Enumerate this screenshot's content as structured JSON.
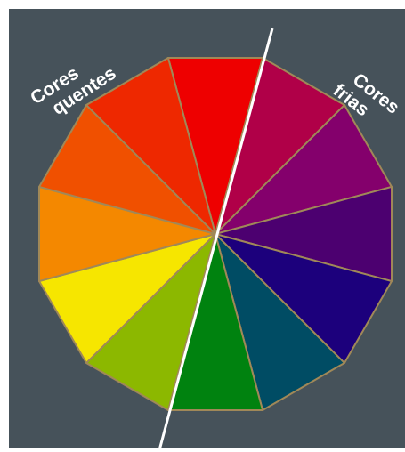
{
  "labels": {
    "warm_line1": "Cores",
    "warm_line2": "quentes",
    "cool_line1": "Cores",
    "cool_line2": "frias"
  },
  "colors": {
    "background": "#46525a",
    "divider_line": "#ffffff",
    "segment_border": "#a08858",
    "label_text": "#ffffff"
  },
  "wheel": {
    "segment_count": 12,
    "segments": [
      {
        "name": "red",
        "color": "#ee0000",
        "temperature": "warm"
      },
      {
        "name": "red-violet",
        "color": "#b00048",
        "temperature": "cool"
      },
      {
        "name": "violet",
        "color": "#84006c",
        "temperature": "cool"
      },
      {
        "name": "blue-violet",
        "color": "#4c0070",
        "temperature": "cool"
      },
      {
        "name": "blue",
        "color": "#1c007c",
        "temperature": "cool"
      },
      {
        "name": "blue-green",
        "color": "#004c64",
        "temperature": "cool"
      },
      {
        "name": "green",
        "color": "#00820f",
        "temperature": "cool"
      },
      {
        "name": "yellow-green",
        "color": "#8cb800",
        "temperature": "warm"
      },
      {
        "name": "yellow",
        "color": "#f6e600",
        "temperature": "warm"
      },
      {
        "name": "yellow-orange",
        "color": "#f48800",
        "temperature": "warm"
      },
      {
        "name": "orange",
        "color": "#f05000",
        "temperature": "warm"
      },
      {
        "name": "red-orange",
        "color": "#ee2800",
        "temperature": "warm"
      }
    ]
  }
}
